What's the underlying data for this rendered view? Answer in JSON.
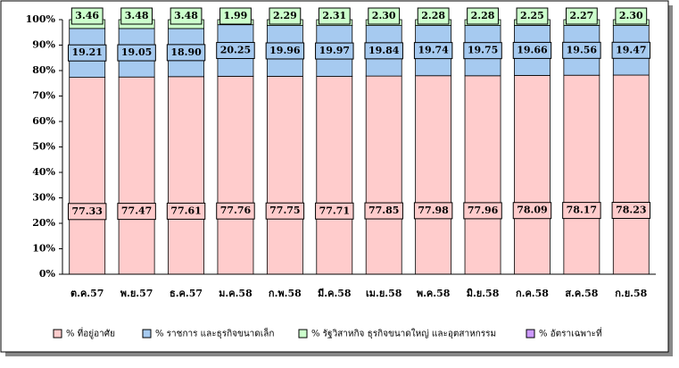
{
  "chart_data": {
    "type": "stacked_bar_100",
    "categories": [
      "ต.ค.57",
      "พ.ย.57",
      "ธ.ค.57",
      "ม.ค.58",
      "ก.พ.58",
      "มี.ค.58",
      "เม.ย.58",
      "พ.ค.58",
      "มิ.ย.58",
      "ก.ค.58",
      "ส.ค.58",
      "ก.ย.58"
    ],
    "series": [
      {
        "name": "% ที่อยู่อาศัย",
        "color": "#ffcccc",
        "values": [
          77.33,
          77.47,
          77.61,
          77.76,
          77.75,
          77.71,
          77.85,
          77.98,
          77.96,
          78.09,
          78.17,
          78.23
        ],
        "value_labels": [
          "77.33",
          "77.47",
          "77.61",
          "77.76",
          "77.75",
          "77.71",
          "77.85",
          "77.98",
          "77.96",
          "78.09",
          "78.17",
          "78.23"
        ]
      },
      {
        "name": "% ราชการ และธุรกิจขนาดเล็ก",
        "color": "#a6caf0",
        "values": [
          19.21,
          19.05,
          18.9,
          20.25,
          19.96,
          19.97,
          19.84,
          19.74,
          19.75,
          19.66,
          19.56,
          19.47
        ],
        "value_labels": [
          "19.21",
          "19.05",
          "18.90",
          "20.25",
          "19.96",
          "19.97",
          "19.84",
          "19.74",
          "19.75",
          "19.66",
          "19.56",
          "19.47"
        ]
      },
      {
        "name": "% รัฐวิสาหกิจ ธุรกิจขนาดใหญ่ และอุตสาหกรรม",
        "color": "#ccffcc",
        "values": [
          3.46,
          3.48,
          3.48,
          1.99,
          2.29,
          2.31,
          2.3,
          2.28,
          2.28,
          2.25,
          2.27,
          2.3
        ],
        "value_labels": [
          "3.46",
          "3.48",
          "3.48",
          "1.99",
          "2.29",
          "2.31",
          "2.30",
          "2.28",
          "2.28",
          "2.25",
          "2.27",
          "2.30"
        ]
      },
      {
        "name": "% อัตราเฉพาะที่",
        "color": "#cc99ff",
        "values": [
          0,
          0,
          0,
          0,
          0,
          0,
          0,
          0,
          0,
          0,
          0,
          0
        ]
      }
    ],
    "ylim": [
      0,
      100
    ],
    "yticks": [
      {
        "value": 0,
        "label": "0%"
      },
      {
        "value": 10,
        "label": "10%"
      },
      {
        "value": 20,
        "label": "20%"
      },
      {
        "value": 30,
        "label": "30%"
      },
      {
        "value": 40,
        "label": "40%"
      },
      {
        "value": 50,
        "label": "50%"
      },
      {
        "value": 60,
        "label": "60%"
      },
      {
        "value": 70,
        "label": "70%"
      },
      {
        "value": 80,
        "label": "80%"
      },
      {
        "value": 90,
        "label": "90%"
      },
      {
        "value": 100,
        "label": "100%"
      }
    ],
    "legend": "bottom"
  }
}
